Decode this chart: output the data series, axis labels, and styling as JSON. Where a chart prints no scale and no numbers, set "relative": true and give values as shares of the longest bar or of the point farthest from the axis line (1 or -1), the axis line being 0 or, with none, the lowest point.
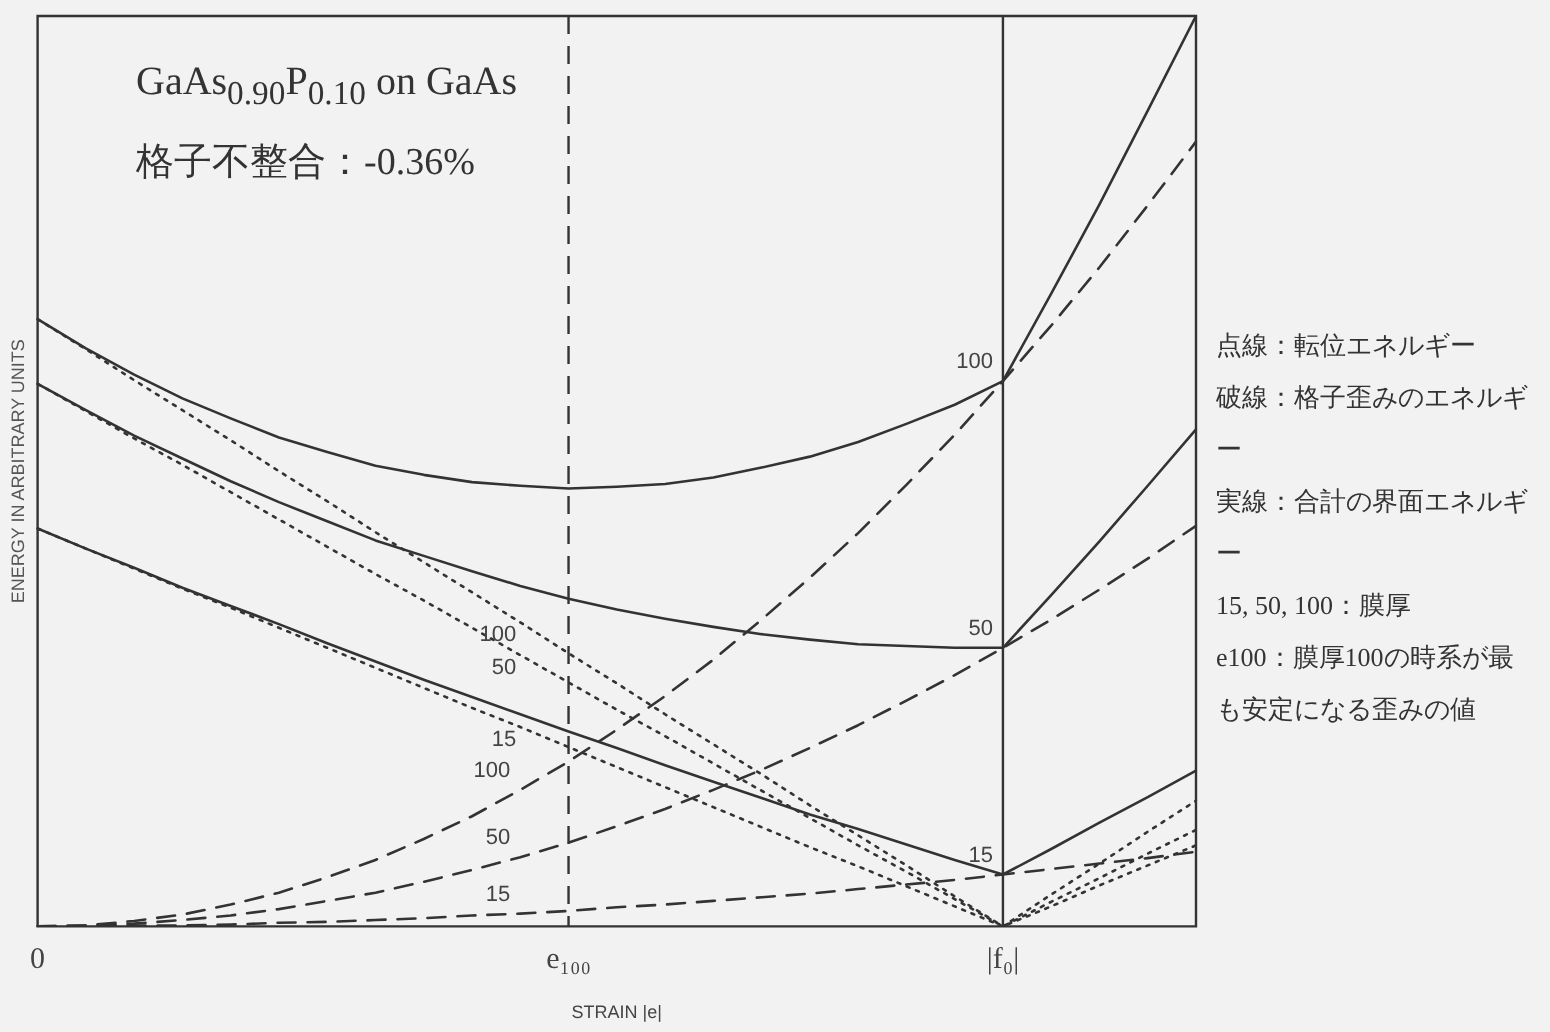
{
  "chart_data": {
    "type": "line",
    "relative": true,
    "title": "GaAs$_{0.90}$P$_{0.10}$ on GaAs",
    "subtitle": "格子不整合：-0.36%",
    "xlabel": "STRAIN |e|",
    "ylabel": "ENERGY IN ARBITRARY UNITS",
    "categories": [
      "0",
      null,
      null,
      null,
      null,
      null,
      null,
      null,
      null,
      null,
      null,
      "e₁₀₀",
      null,
      null,
      null,
      null,
      null,
      null,
      null,
      null,
      "|f₀|",
      null,
      null,
      null,
      null
    ],
    "tick_labels": "x",
    "grid": false,
    "legend": false,
    "marker": "none",
    "series": [
      {
        "name": "100",
        "color": "#333333",
        "line_style": "dashed",
        "values": [
          0,
          0.001,
          0.006,
          0.013,
          0.024,
          0.037,
          0.054,
          0.073,
          0.096,
          0.121,
          0.15,
          0.181,
          0.216,
          0.253,
          0.293,
          0.337,
          0.383,
          0.432,
          0.485,
          0.54,
          0.599,
          0.66,
          0.724,
          0.792,
          0.862
        ]
      },
      {
        "name": "50",
        "color": "#333333",
        "line_style": "dashed",
        "values": [
          0,
          0.001,
          0.003,
          0.007,
          0.012,
          0.019,
          0.028,
          0.037,
          0.049,
          0.062,
          0.076,
          0.092,
          0.11,
          0.129,
          0.15,
          0.172,
          0.196,
          0.221,
          0.248,
          0.276,
          0.306,
          0.337,
          0.37,
          0.404,
          0.44
        ]
      },
      {
        "name": "15",
        "color": "#333333",
        "line_style": "dashed",
        "values": [
          0,
          0,
          0.001,
          0.001,
          0.002,
          0.004,
          0.005,
          0.007,
          0.009,
          0.012,
          0.014,
          0.017,
          0.021,
          0.024,
          0.028,
          0.032,
          0.036,
          0.041,
          0.046,
          0.051,
          0.057,
          0.063,
          0.069,
          0.075,
          0.082
        ]
      },
      {
        "name": "100",
        "color": "#333333",
        "line_style": "dotted",
        "values": [
          0.667,
          0.634,
          0.6,
          0.567,
          0.534,
          0.5,
          0.467,
          0.433,
          0.4,
          0.367,
          0.334,
          0.3,
          0.267,
          0.233,
          0.2,
          0.167,
          0.133,
          0.1,
          0.067,
          0.033,
          0,
          0.035,
          0.069,
          0.104,
          0.138
        ]
      },
      {
        "name": "50",
        "color": "#333333",
        "line_style": "dotted",
        "values": [
          0.596,
          0.566,
          0.536,
          0.507,
          0.477,
          0.447,
          0.417,
          0.387,
          0.358,
          0.328,
          0.298,
          0.268,
          0.238,
          0.209,
          0.179,
          0.149,
          0.119,
          0.089,
          0.06,
          0.03,
          0,
          0.027,
          0.053,
          0.08,
          0.106
        ]
      },
      {
        "name": "15",
        "color": "#333333",
        "line_style": "dotted",
        "values": [
          0.437,
          0.415,
          0.393,
          0.371,
          0.35,
          0.328,
          0.306,
          0.284,
          0.262,
          0.24,
          0.219,
          0.197,
          0.175,
          0.153,
          0.131,
          0.109,
          0.087,
          0.066,
          0.044,
          0.022,
          0,
          0.022,
          0.045,
          0.067,
          0.089
        ]
      },
      {
        "name": "100",
        "color": "#333333",
        "line_style": "solid",
        "values": [
          0.667,
          0.635,
          0.606,
          0.58,
          0.558,
          0.537,
          0.521,
          0.506,
          0.496,
          0.488,
          0.484,
          0.481,
          0.483,
          0.486,
          0.493,
          0.504,
          0.516,
          0.532,
          0.552,
          0.573,
          0.599,
          0.695,
          0.793,
          0.896,
          1
        ]
      },
      {
        "name": "50",
        "color": "#333333",
        "line_style": "solid",
        "values": [
          0.596,
          0.567,
          0.539,
          0.514,
          0.489,
          0.466,
          0.445,
          0.424,
          0.407,
          0.39,
          0.374,
          0.36,
          0.348,
          0.338,
          0.329,
          0.321,
          0.315,
          0.31,
          0.308,
          0.306,
          0.306,
          0.364,
          0.423,
          0.484,
          0.546
        ]
      },
      {
        "name": "15",
        "color": "#333333",
        "line_style": "solid",
        "values": [
          0.437,
          0.415,
          0.394,
          0.372,
          0.352,
          0.332,
          0.311,
          0.291,
          0.271,
          0.252,
          0.233,
          0.214,
          0.196,
          0.177,
          0.159,
          0.141,
          0.123,
          0.107,
          0.09,
          0.073,
          0.057,
          0.085,
          0.114,
          0.142,
          0.171
        ]
      }
    ],
    "ref_lines": [
      {
        "axis": "x",
        "value": "e₁₀₀",
        "line_style": "dashed",
        "color": "#333333"
      },
      {
        "axis": "x",
        "value": "|f₀|",
        "line_style": "solid",
        "color": "#333333"
      }
    ],
    "annotations": [
      "点線：転位エネルギー",
      "破線：格子歪みのエネルギー",
      "実線：合計の界面エネルギー",
      "15, 50, 100：膜厚",
      "e100：膜厚100の時系が最も安定になる歪みの値"
    ]
  }
}
